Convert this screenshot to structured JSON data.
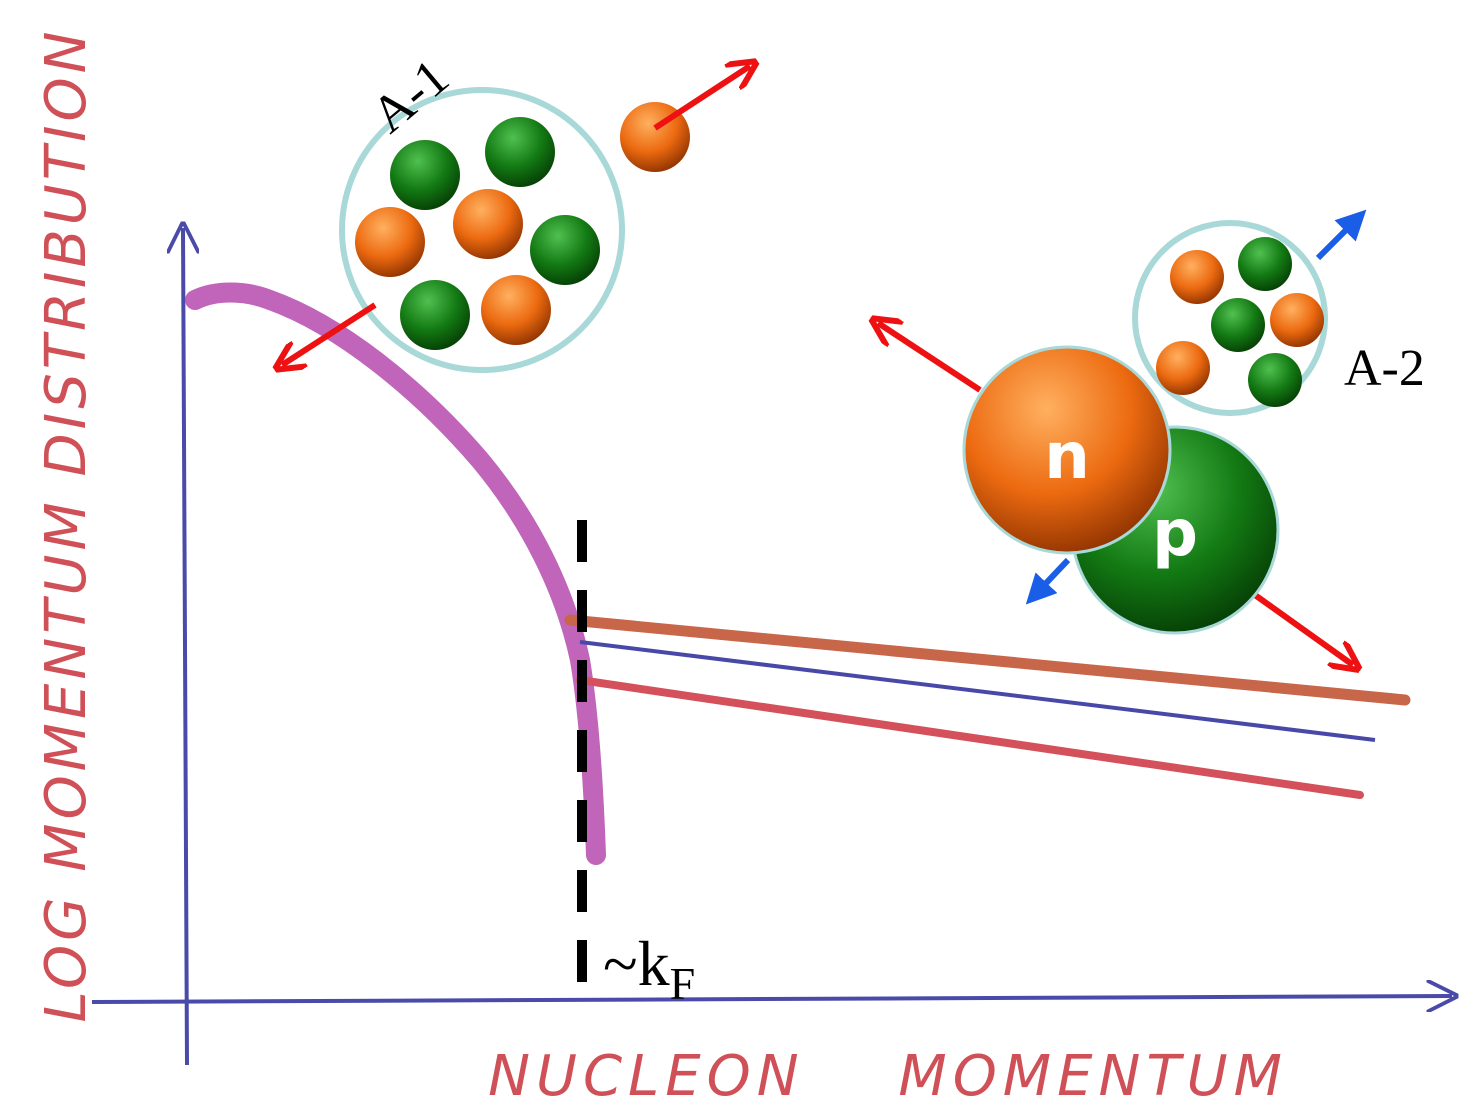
{
  "y_axis_label": "LOG MOMENTUM DISTRIBUTION",
  "x_axis_label": "NUCLEON MOMENTUM",
  "a_minus_1_label": "A-1",
  "a_minus_2_label": "A-2",
  "neutron_label": "n",
  "proton_label": "p",
  "fermi_label": {
    "main": "~k",
    "sub": "F"
  }
}
